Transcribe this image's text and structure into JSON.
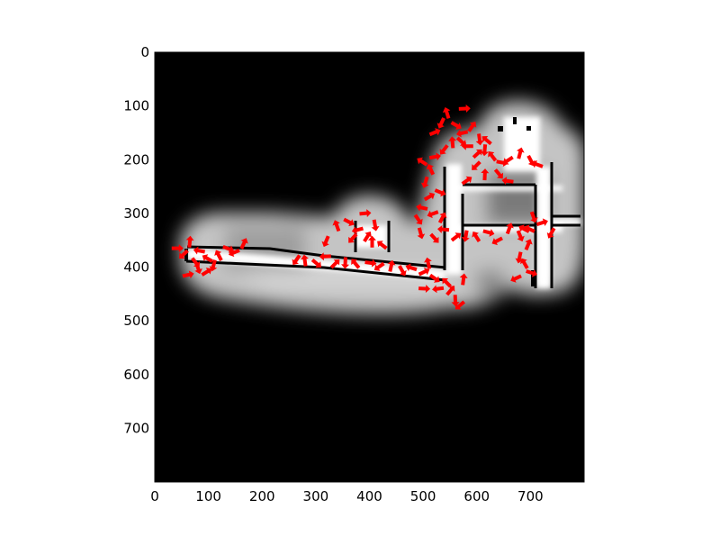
{
  "chart_data": {
    "type": "scatter",
    "title": "",
    "xlabel": "",
    "ylabel": "",
    "xlim": [
      0,
      800
    ],
    "ylim": [
      800,
      0
    ],
    "y_inverted": true,
    "grid": false,
    "background": "occupancy grid map image",
    "x_ticks": [
      "0",
      "100",
      "200",
      "300",
      "400",
      "500",
      "600",
      "700"
    ],
    "y_ticks": [
      "0",
      "100",
      "200",
      "300",
      "400",
      "500",
      "600",
      "700"
    ],
    "colors": {
      "map_unknown": "#000000",
      "map_free": "#ffffff",
      "map_blur": "#bdbdbd",
      "particles": "#ff0000",
      "axes": "#000000"
    },
    "series": [
      {
        "marker": "arrow",
        "color": "#ff0000",
        "points": [
          [
            40,
            365
          ],
          [
            55,
            375
          ],
          [
            65,
            355
          ],
          [
            75,
            390
          ],
          [
            85,
            370
          ],
          [
            95,
            410
          ],
          [
            110,
            395
          ],
          [
            120,
            380
          ],
          [
            135,
            365
          ],
          [
            150,
            372
          ],
          [
            165,
            358
          ],
          [
            80,
            400
          ],
          [
            100,
            385
          ],
          [
            60,
            415
          ],
          [
            265,
            385
          ],
          [
            280,
            390
          ],
          [
            300,
            392
          ],
          [
            320,
            380
          ],
          [
            335,
            395
          ],
          [
            355,
            390
          ],
          [
            375,
            395
          ],
          [
            400,
            392
          ],
          [
            420,
            398
          ],
          [
            440,
            400
          ],
          [
            460,
            405
          ],
          [
            480,
            402
          ],
          [
            500,
            410
          ],
          [
            320,
            350
          ],
          [
            340,
            325
          ],
          [
            360,
            315
          ],
          [
            380,
            330
          ],
          [
            395,
            345
          ],
          [
            410,
            320
          ],
          [
            425,
            360
          ],
          [
            390,
            300
          ],
          [
            370,
            345
          ],
          [
            405,
            355
          ],
          [
            520,
            345
          ],
          [
            540,
            330
          ],
          [
            560,
            345
          ],
          [
            580,
            340
          ],
          [
            600,
            345
          ],
          [
            620,
            335
          ],
          [
            640,
            350
          ],
          [
            660,
            330
          ],
          [
            680,
            340
          ],
          [
            700,
            330
          ],
          [
            720,
            318
          ],
          [
            740,
            335
          ],
          [
            510,
            395
          ],
          [
            520,
            420
          ],
          [
            530,
            440
          ],
          [
            550,
            445
          ],
          [
            560,
            460
          ],
          [
            545,
            430
          ],
          [
            500,
            440
          ],
          [
            570,
            470
          ],
          [
            575,
            425
          ],
          [
            490,
            310
          ],
          [
            500,
            290
          ],
          [
            510,
            270
          ],
          [
            505,
            240
          ],
          [
            515,
            220
          ],
          [
            530,
            260
          ],
          [
            520,
            300
          ],
          [
            535,
            310
          ],
          [
            495,
            335
          ],
          [
            500,
            205
          ],
          [
            520,
            195
          ],
          [
            540,
            180
          ],
          [
            555,
            170
          ],
          [
            570,
            165
          ],
          [
            585,
            175
          ],
          [
            600,
            190
          ],
          [
            615,
            180
          ],
          [
            630,
            195
          ],
          [
            645,
            205
          ],
          [
            660,
            200
          ],
          [
            680,
            190
          ],
          [
            700,
            200
          ],
          [
            715,
            210
          ],
          [
            520,
            150
          ],
          [
            535,
            130
          ],
          [
            545,
            115
          ],
          [
            560,
            135
          ],
          [
            575,
            150
          ],
          [
            590,
            140
          ],
          [
            605,
            160
          ],
          [
            620,
            165
          ],
          [
            575,
            105
          ],
          [
            600,
            210
          ],
          [
            615,
            230
          ],
          [
            640,
            225
          ],
          [
            660,
            240
          ],
          [
            580,
            240
          ],
          [
            680,
            380
          ],
          [
            690,
            395
          ],
          [
            700,
            410
          ],
          [
            675,
            420
          ],
          [
            695,
            360
          ],
          [
            705,
            305
          ],
          [
            690,
            330
          ]
        ]
      }
    ]
  }
}
